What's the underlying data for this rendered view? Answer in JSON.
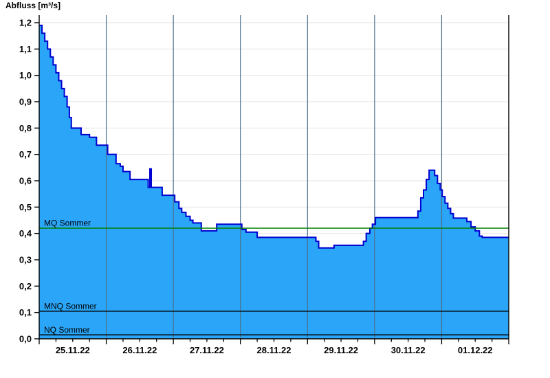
{
  "page": {
    "title": "Abfluss [m³/s]"
  },
  "colors": {
    "background": "#ffffff",
    "area_fill": "#2aa5f7",
    "curve_stroke": "#0000d0",
    "mq_line": "#007f00",
    "reference_line": "#000000",
    "vertical_grid": "#4d718d",
    "horizontal_grid": "#e8e8e8",
    "axis": "#000000",
    "text": "#000000"
  },
  "chart_data": {
    "type": "area",
    "title": "Abfluss [m³/s]",
    "ylabel": "Abfluss [m³/s]",
    "y_unit": "m³/s",
    "step_plot": true,
    "grid": {
      "horizontal": true,
      "vertical_day_lines": true
    },
    "x_axis": {
      "start": "25.11.22 00:00",
      "end": "02.12.22 00:00",
      "total_hours": 168,
      "major_tick_hours": 24,
      "minor_tick_hours": 6,
      "tick_labels": [
        "25.11.22",
        "26.11.22",
        "27.11.22",
        "28.11.22",
        "29.11.22",
        "30.11.22",
        "01.12.22"
      ]
    },
    "y_axis": {
      "min": 0,
      "max": 1.229,
      "tick_values": [
        0,
        0.1,
        0.2,
        0.3,
        0.4,
        0.5,
        0.6,
        0.7,
        0.8,
        0.9,
        1.0,
        1.1,
        1.2
      ],
      "tick_labels": [
        "0,0",
        "0,1",
        "0,2",
        "0,3",
        "0,4",
        "0,5",
        "0,6",
        "0,7",
        "0,8",
        "0,9",
        "1,0",
        "1,1",
        "1,2"
      ]
    },
    "reference_lines": [
      {
        "label": "MQ Sommer",
        "value": 0.42,
        "color": "#007f00"
      },
      {
        "label": "MNQ Sommer",
        "value": 0.105,
        "color": "#000000"
      },
      {
        "label": "NQ Sommer",
        "value": 0.015,
        "color": "#000000"
      }
    ],
    "series": [
      {
        "name": "Abfluss",
        "unit": "m³/s",
        "steps": [
          [
            0,
            1.19
          ],
          [
            1,
            1.16
          ],
          [
            2,
            1.13
          ],
          [
            3,
            1.1
          ],
          [
            4,
            1.07
          ],
          [
            5,
            1.04
          ],
          [
            6,
            1.01
          ],
          [
            7,
            0.98
          ],
          [
            8,
            0.95
          ],
          [
            9,
            0.92
          ],
          [
            10,
            0.88
          ],
          [
            10.8,
            0.84
          ],
          [
            11.5,
            0.8
          ],
          [
            15,
            0.775
          ],
          [
            18,
            0.765
          ],
          [
            20.5,
            0.735
          ],
          [
            24.5,
            0.7
          ],
          [
            27.5,
            0.665
          ],
          [
            29,
            0.655
          ],
          [
            30,
            0.635
          ],
          [
            32.5,
            0.605
          ],
          [
            39,
            0.575
          ],
          [
            39.6,
            0.645
          ],
          [
            40.1,
            0.575
          ],
          [
            44,
            0.545
          ],
          [
            48.5,
            0.52
          ],
          [
            50,
            0.495
          ],
          [
            51,
            0.48
          ],
          [
            52.5,
            0.465
          ],
          [
            54,
            0.45
          ],
          [
            55,
            0.44
          ],
          [
            58,
            0.41
          ],
          [
            63.5,
            0.435
          ],
          [
            72.5,
            0.415
          ],
          [
            74,
            0.405
          ],
          [
            78,
            0.385
          ],
          [
            99,
            0.37
          ],
          [
            100,
            0.345
          ],
          [
            105.5,
            0.355
          ],
          [
            116,
            0.37
          ],
          [
            117,
            0.4
          ],
          [
            118.3,
            0.42
          ],
          [
            119.2,
            0.435
          ],
          [
            120.3,
            0.46
          ],
          [
            135.5,
            0.485
          ],
          [
            136.5,
            0.535
          ],
          [
            137.5,
            0.565
          ],
          [
            138.5,
            0.605
          ],
          [
            139.5,
            0.64
          ],
          [
            141.5,
            0.62
          ],
          [
            142.5,
            0.59
          ],
          [
            143.5,
            0.565
          ],
          [
            144.2,
            0.54
          ],
          [
            145.2,
            0.515
          ],
          [
            146.2,
            0.495
          ],
          [
            147.2,
            0.475
          ],
          [
            148.2,
            0.458
          ],
          [
            153,
            0.445
          ],
          [
            154.5,
            0.425
          ],
          [
            156,
            0.41
          ],
          [
            157.5,
            0.39
          ],
          [
            158.5,
            0.385
          ]
        ]
      }
    ]
  }
}
